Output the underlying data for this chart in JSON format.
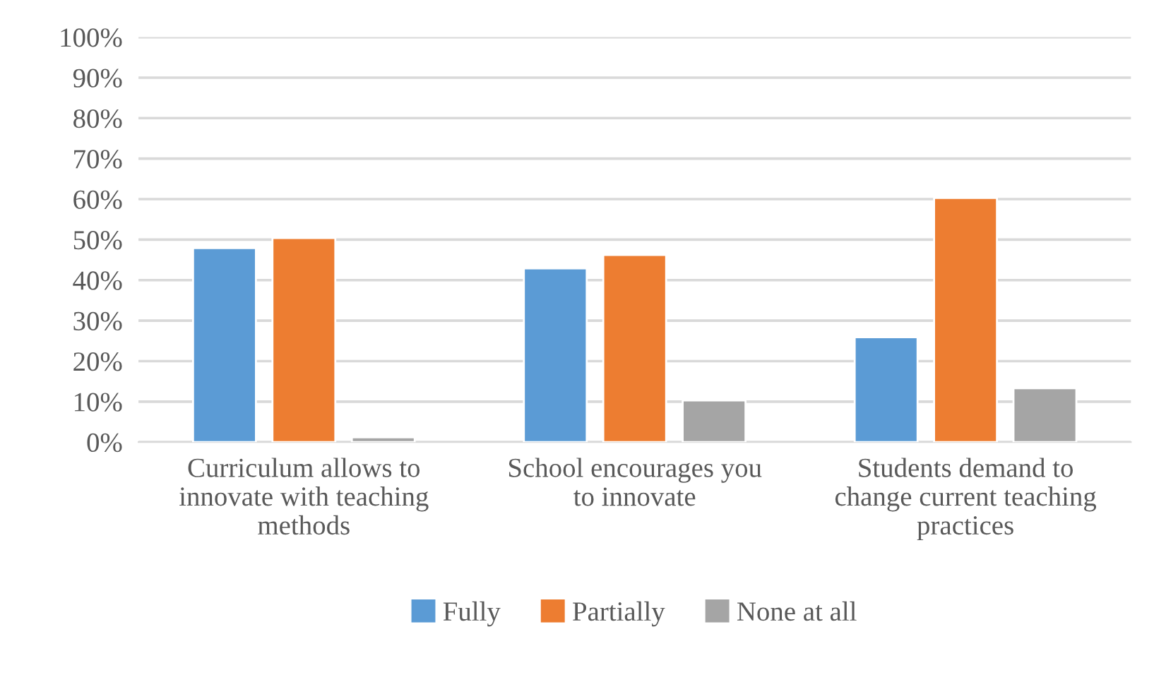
{
  "chart_data": {
    "type": "bar",
    "categories": [
      "Curriculum allows to\ninnovate with teaching\nmethods",
      "School encourages you\nto innovate",
      "Students demand to\nchange current teaching\npractices"
    ],
    "series": [
      {
        "name": "Fully",
        "color": "#5b9bd5",
        "values": [
          47.9,
          42.9,
          25.9
        ]
      },
      {
        "name": "Partially",
        "color": "#ed7d31",
        "values": [
          50.4,
          46.2,
          60.3
        ]
      },
      {
        "name": "None at all",
        "color": "#a5a5a5",
        "values": [
          1.2,
          10.3,
          13.3
        ]
      }
    ],
    "ylim": [
      0,
      100
    ],
    "yticks": [
      {
        "value": 0,
        "label": "0%"
      },
      {
        "value": 10,
        "label": "10%"
      },
      {
        "value": 20,
        "label": "20%"
      },
      {
        "value": 30,
        "label": "30%"
      },
      {
        "value": 40,
        "label": "40%"
      },
      {
        "value": 50,
        "label": "50%"
      },
      {
        "value": 60,
        "label": "60%"
      },
      {
        "value": 70,
        "label": "70%"
      },
      {
        "value": 80,
        "label": "80%"
      },
      {
        "value": 90,
        "label": "90%"
      },
      {
        "value": 100,
        "label": "100%"
      }
    ],
    "grid": "y",
    "legend": "bottom"
  }
}
